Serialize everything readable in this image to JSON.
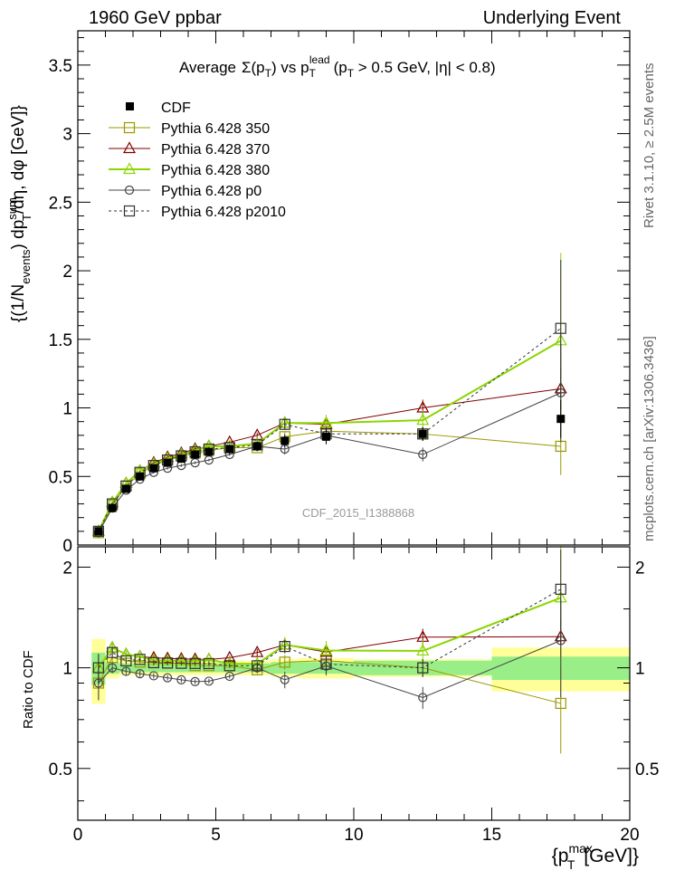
{
  "header": {
    "left": "1960 GeV ppbar",
    "right": "Underlying Event"
  },
  "chart_data": {
    "type": "line",
    "title": "Average Σ(p_T) vs p_T^lead (p_T > 0.5 GeV, |η| < 0.8)",
    "title_parts": {
      "a": "Average",
      "b": "Σ(p",
      "c": "T",
      "d": ") vs p",
      "e": "T",
      "f": "lead",
      "g": "(p",
      "h": "T",
      "i": " > 0.5 GeV, |η| < 0.8)"
    },
    "watermark": "CDF_2015_I1388868",
    "side_right_top": "Rivet 3.1.10, ≥ 2.5M events",
    "side_right_bottom": "mcplots.cern.ch [arXiv:1306.3436]",
    "ylabel_parts": {
      "a": "{(1/N",
      "b": "events",
      "c": ") dp",
      "d": "sum",
      "e": "T",
      "f": "/dη, dφ [GeV]}"
    },
    "ratio_ylabel": "Ratio to CDF",
    "xlabel_parts": {
      "a": "{p",
      "b": "max",
      "c": "T",
      "d": " [GeV]}"
    },
    "xlim": [
      0,
      20
    ],
    "ylim": [
      0,
      3.75
    ],
    "ratio_ylim": [
      0.35,
      2.3
    ],
    "x_ticks": [
      "0",
      "5",
      "10",
      "15",
      "20"
    ],
    "y_ticks": [
      "0",
      "0.5",
      "1",
      "1.5",
      "2",
      "2.5",
      "3",
      "3.5"
    ],
    "ratio_ticks": [
      "0.5",
      "1",
      "2"
    ],
    "x_edges": [
      0.5,
      1.0,
      1.5,
      2.0,
      2.5,
      3.0,
      3.5,
      4.0,
      4.5,
      5.0,
      6.0,
      7.0,
      8.0,
      10.0,
      15.0,
      20.0
    ],
    "x": [
      0.75,
      1.25,
      1.75,
      2.25,
      2.75,
      3.25,
      3.75,
      4.25,
      4.75,
      5.5,
      6.5,
      7.5,
      9.0,
      12.5,
      17.5
    ],
    "data": {
      "name": "CDF",
      "values": [
        0.1,
        0.27,
        0.41,
        0.5,
        0.56,
        0.6,
        0.63,
        0.66,
        0.68,
        0.7,
        0.72,
        0.76,
        0.79,
        0.81,
        0.92
      ],
      "stat_rel": [
        0.11,
        0.04,
        0.03,
        0.03,
        0.03,
        0.03,
        0.03,
        0.03,
        0.03,
        0.03,
        0.03,
        0.04,
        0.04,
        0.05,
        0.08
      ],
      "tot_rel": [
        0.22,
        0.07,
        0.05,
        0.05,
        0.05,
        0.05,
        0.05,
        0.05,
        0.05,
        0.05,
        0.05,
        0.06,
        0.07,
        0.06,
        0.15
      ]
    },
    "series": [
      {
        "name": "Pythia 6.428 350",
        "color": "#999900",
        "marker": "square",
        "dash": "",
        "width": 1,
        "values": [
          0.09,
          0.29,
          0.43,
          0.52,
          0.58,
          0.62,
          0.65,
          0.67,
          0.69,
          0.71,
          0.71,
          0.79,
          0.83,
          0.81,
          0.72
        ],
        "err": [
          0.01,
          0.01,
          0.01,
          0.01,
          0.01,
          0.01,
          0.01,
          0.01,
          0.01,
          0.01,
          0.02,
          0.04,
          0.05,
          0.05,
          0.21
        ]
      },
      {
        "name": "Pythia 6.428 370",
        "color": "#800000",
        "marker": "triangle",
        "dash": "",
        "width": 1,
        "values": [
          0.1,
          0.31,
          0.45,
          0.54,
          0.6,
          0.64,
          0.67,
          0.7,
          0.72,
          0.75,
          0.8,
          0.89,
          0.88,
          1.0,
          1.14
        ],
        "err": [
          0.01,
          0.01,
          0.01,
          0.01,
          0.01,
          0.01,
          0.01,
          0.01,
          0.01,
          0.01,
          0.02,
          0.04,
          0.05,
          0.06,
          0.15
        ]
      },
      {
        "name": "Pythia 6.428 380",
        "color": "#8bd600",
        "marker": "triangle",
        "dash": "",
        "width": 2,
        "values": [
          0.1,
          0.31,
          0.45,
          0.54,
          0.59,
          0.63,
          0.66,
          0.69,
          0.72,
          0.72,
          0.74,
          0.89,
          0.89,
          0.91,
          1.49
        ],
        "err": [
          0.01,
          0.01,
          0.01,
          0.01,
          0.01,
          0.01,
          0.01,
          0.01,
          0.01,
          0.01,
          0.02,
          0.05,
          0.06,
          0.07,
          0.64
        ]
      },
      {
        "name": "Pythia 6.428 p0",
        "color": "#444444",
        "marker": "circle",
        "dash": "",
        "width": 1,
        "values": [
          0.09,
          0.27,
          0.4,
          0.48,
          0.53,
          0.56,
          0.58,
          0.6,
          0.62,
          0.66,
          0.72,
          0.7,
          0.8,
          0.66,
          1.11
        ],
        "err": [
          0.01,
          0.01,
          0.01,
          0.01,
          0.01,
          0.01,
          0.01,
          0.01,
          0.01,
          0.01,
          0.02,
          0.04,
          0.05,
          0.05,
          0.36
        ]
      },
      {
        "name": "Pythia 6.428 p2010",
        "color": "#333333",
        "marker": "square",
        "dash": "3,3",
        "width": 1,
        "values": [
          0.1,
          0.3,
          0.43,
          0.53,
          0.58,
          0.62,
          0.65,
          0.68,
          0.7,
          0.71,
          0.73,
          0.88,
          0.81,
          0.81,
          1.58
        ],
        "err": [
          0.01,
          0.01,
          0.01,
          0.01,
          0.01,
          0.01,
          0.01,
          0.01,
          0.01,
          0.01,
          0.02,
          0.04,
          0.05,
          0.05,
          0.5
        ]
      }
    ]
  }
}
